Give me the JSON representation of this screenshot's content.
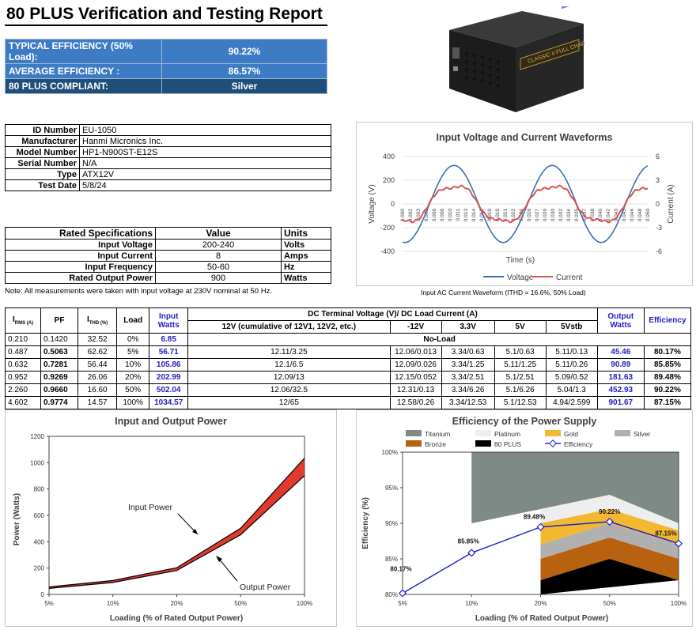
{
  "title": "80 PLUS Verification and Testing Report",
  "summary": [
    {
      "label": "TYPICAL EFFICIENCY (50% Load):",
      "value": "90.22%"
    },
    {
      "label": "AVERAGE EFFICIENCY :",
      "value": "86.57%"
    },
    {
      "label": "80 PLUS COMPLIANT:",
      "value": "Silver"
    }
  ],
  "product_image": {
    "brand_text": "CLASSIC II FULL CHARGE",
    "icon": "psu-image"
  },
  "identity": [
    {
      "k": "ID Number",
      "v": "EU-1050"
    },
    {
      "k": "Manufacturer",
      "v": "Hanmi Micronics Inc."
    },
    {
      "k": "Model Number",
      "v": "HP1-N900ST-E12S"
    },
    {
      "k": "Serial Number",
      "v": "N/A"
    },
    {
      "k": "Type",
      "v": "ATX12V"
    },
    {
      "k": "Test Date",
      "v": "5/8/24"
    }
  ],
  "rated": {
    "headers": [
      "Rated Specifications",
      "Value",
      "Units"
    ],
    "rows": [
      {
        "k": "Input Voltage",
        "v": "200-240",
        "u": "Volts"
      },
      {
        "k": "Input Current",
        "v": "8",
        "u": "Amps"
      },
      {
        "k": "Input Frequency",
        "v": "50-60",
        "u": "Hz"
      },
      {
        "k": "Rated Output Power",
        "v": "900",
        "u": "Watts"
      }
    ],
    "note": "Note: All measurements were taken with input voltage at 230V nominal at 50 Hz."
  },
  "waveform": {
    "title": "Input Voltage and Current Waveforms",
    "ylabel_left": "Voltage (V)",
    "ylabel_right": "Current (A)",
    "xlabel": "Time (s)",
    "left_ticks": [
      "400",
      "200",
      "0",
      "-200",
      "-400"
    ],
    "right_ticks": [
      "6",
      "3",
      "0",
      "-3",
      "-6"
    ],
    "x_ticks": [
      "0.000",
      "0.002",
      "0.003",
      "0.005",
      "0.006",
      "0.008",
      "0.010",
      "0.011",
      "0.013",
      "0.014",
      "0.016",
      "0.018",
      "0.019",
      "0.021",
      "0.022",
      "0.024",
      "0.026",
      "0.027",
      "0.029",
      "0.030",
      "0.032",
      "0.034",
      "0.035",
      "0.037",
      "0.038",
      "0.040",
      "0.042",
      "0.043",
      "0.045",
      "0.046",
      "0.048",
      "0.050"
    ],
    "legend": [
      "Voltage",
      "Current"
    ],
    "caption": "Input AC Current Waveform (ITHD = 16.6%, 50% Load)",
    "colors": {
      "voltage": "#3a6fb5",
      "current": "#d9534f"
    }
  },
  "main_table": {
    "headers": {
      "irms": "I",
      "irms_sub": "RMS (A)",
      "pf": "PF",
      "ithd": "I",
      "ithd_sub": "THD (%)",
      "load": "Load",
      "input_watts": "Input Watts",
      "dc_group": "DC Terminal Voltage (V)/ DC Load Current (A)",
      "v12": "12V (cumulative of 12V1, 12V2, etc.)",
      "vm12": "-12V",
      "v33": "3.3V",
      "v5": "5V",
      "v5sb": "5Vstb",
      "output_watts": "Output Watts",
      "efficiency": "Efficiency"
    },
    "noload": {
      "irms": "0.210",
      "pf": "0.1420",
      "ithd": "32.52",
      "load": "0%",
      "in": "6.85",
      "text": "No-Load"
    },
    "rows": [
      {
        "irms": "0.487",
        "pf": "0.5063",
        "ithd": "62.62",
        "load": "5%",
        "in": "56.71",
        "v12": "12.11/3.25",
        "vm12": "12.06/0.013",
        "v33": "3.34/0.63",
        "v5": "5.1/0.63",
        "v5sb": "5.11/0.13",
        "out": "45.46",
        "eff": "80.17%"
      },
      {
        "irms": "0.632",
        "pf": "0.7281",
        "ithd": "56.44",
        "load": "10%",
        "in": "105.86",
        "v12": "12.1/6.5",
        "vm12": "12.09/0.026",
        "v33": "3.34/1.25",
        "v5": "5.11/1.25",
        "v5sb": "5.11/0.26",
        "out": "90.89",
        "eff": "85.85%"
      },
      {
        "irms": "0.952",
        "pf": "0.9269",
        "ithd": "26.06",
        "load": "20%",
        "in": "202.99",
        "v12": "12.09/13",
        "vm12": "12.15/0.052",
        "v33": "3.34/2.51",
        "v5": "5.1/2.51",
        "v5sb": "5.09/0.52",
        "out": "181.63",
        "eff": "89.48%"
      },
      {
        "irms": "2.260",
        "pf": "0.9660",
        "ithd": "16.60",
        "load": "50%",
        "in": "502.04",
        "v12": "12.06/32.5",
        "vm12": "12.31/0.13",
        "v33": "3.34/6.26",
        "v5": "5.1/6.26",
        "v5sb": "5.04/1.3",
        "out": "452.93",
        "eff": "90.22%"
      },
      {
        "irms": "4.602",
        "pf": "0.9774",
        "ithd": "14.57",
        "load": "100%",
        "in": "1034.57",
        "v12": "12/65",
        "vm12": "12.58/0.26",
        "v33": "3.34/12.53",
        "v5": "5.1/12.53",
        "v5sb": "4.94/2.599",
        "out": "901.67",
        "eff": "87.15%"
      }
    ]
  },
  "chart_data": [
    {
      "type": "area",
      "title": "Input and Output Power",
      "xlabel": "Loading (% of Rated Output Power)",
      "ylabel": "Power (Watts)",
      "categories": [
        "5%",
        "10%",
        "20%",
        "50%",
        "100%"
      ],
      "y_ticks": [
        "0",
        "200",
        "400",
        "600",
        "800",
        "1000",
        "1200"
      ],
      "ylim": [
        0,
        1200
      ],
      "series": [
        {
          "name": "Input Power",
          "values": [
            56.71,
            105.86,
            202.99,
            502.04,
            1034.57
          ]
        },
        {
          "name": "Output Power",
          "values": [
            45.46,
            90.89,
            181.63,
            452.93,
            901.67
          ]
        }
      ],
      "annotations": [
        "Input Power",
        "Output Power"
      ],
      "colors": {
        "fill": "#e03a2f",
        "line": "#000000"
      }
    },
    {
      "type": "line",
      "title": "Efficiency of the Power Supply",
      "xlabel": "Loading (% of Rated Output Power)",
      "ylabel": "Efficiency (%)",
      "categories": [
        "5%",
        "10%",
        "20%",
        "50%",
        "100%"
      ],
      "y_ticks": [
        "80%",
        "85%",
        "90%",
        "95%",
        "100%"
      ],
      "ylim": [
        80,
        100
      ],
      "legend": [
        "Titanium",
        "Platinum",
        "Gold",
        "Silver",
        "Bronze",
        "80 PLUS",
        "Efficiency"
      ],
      "legend_colors": [
        "#7d8a86",
        "#eeeeee",
        "#f2b830",
        "#b0b0b0",
        "#b8620f",
        "#000000",
        "#2323c8"
      ],
      "series": [
        {
          "name": "Efficiency",
          "values": [
            80.17,
            85.85,
            89.48,
            90.22,
            87.15
          ]
        }
      ],
      "point_labels": [
        "80.17%",
        "85.85%",
        "89.48%",
        "90.22%",
        "87.15%"
      ],
      "bands": {
        "titanium": [
          90,
          92,
          94,
          90
        ],
        "platinum": [
          null,
          90,
          92,
          89
        ],
        "gold": [
          null,
          87,
          90,
          87
        ],
        "silver": [
          null,
          85,
          88,
          85
        ],
        "bronze": [
          null,
          82,
          85,
          82
        ],
        "plus80": [
          null,
          80,
          80,
          80
        ]
      }
    }
  ]
}
